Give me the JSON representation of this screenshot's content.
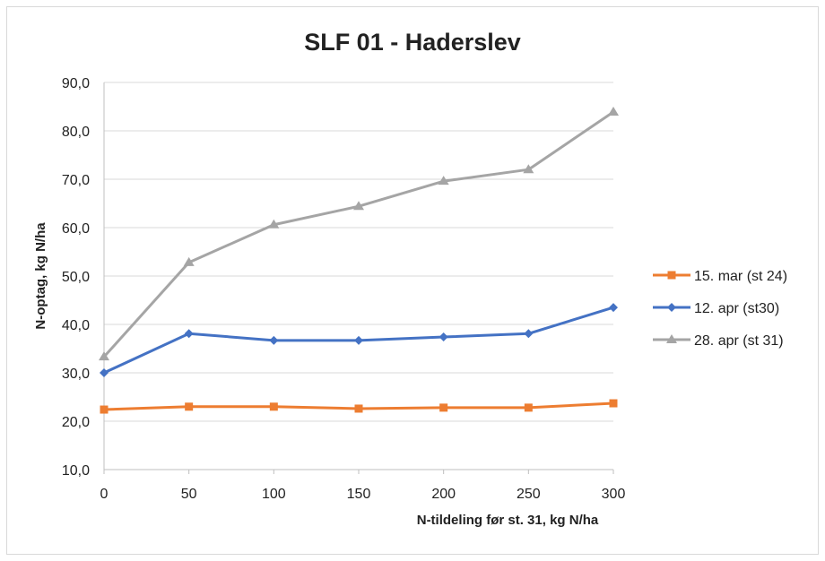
{
  "chart_data": {
    "type": "line",
    "title": "SLF 01 - Haderslev",
    "xlabel": "N-tildeling før st. 31, kg N/ha",
    "ylabel": "N-optag, kg N/ha",
    "x": [
      0,
      50,
      100,
      150,
      200,
      250,
      300
    ],
    "xlim": [
      0,
      300
    ],
    "ylim": [
      10,
      90
    ],
    "yticks": [
      "10,0",
      "20,0",
      "30,0",
      "40,0",
      "50,0",
      "60,0",
      "70,0",
      "80,0",
      "90,0"
    ],
    "xticks": [
      "0",
      "50",
      "100",
      "150",
      "200",
      "250",
      "300"
    ],
    "grid": true,
    "legend": "right",
    "series": [
      {
        "name": "15. mar (st 24)",
        "color": "#ed7d31",
        "marker": "square",
        "values": [
          22.4,
          23.0,
          23.0,
          22.6,
          22.8,
          22.8,
          23.7
        ]
      },
      {
        "name": "12. apr (st30)",
        "color": "#4472c4",
        "marker": "diamond",
        "values": [
          30.0,
          38.1,
          36.7,
          36.7,
          37.4,
          38.1,
          43.5
        ]
      },
      {
        "name": "28. apr (st 31)",
        "color": "#a5a5a5",
        "marker": "triangle",
        "values": [
          33.3,
          52.8,
          60.6,
          64.4,
          69.6,
          72.0,
          83.9
        ]
      }
    ]
  }
}
